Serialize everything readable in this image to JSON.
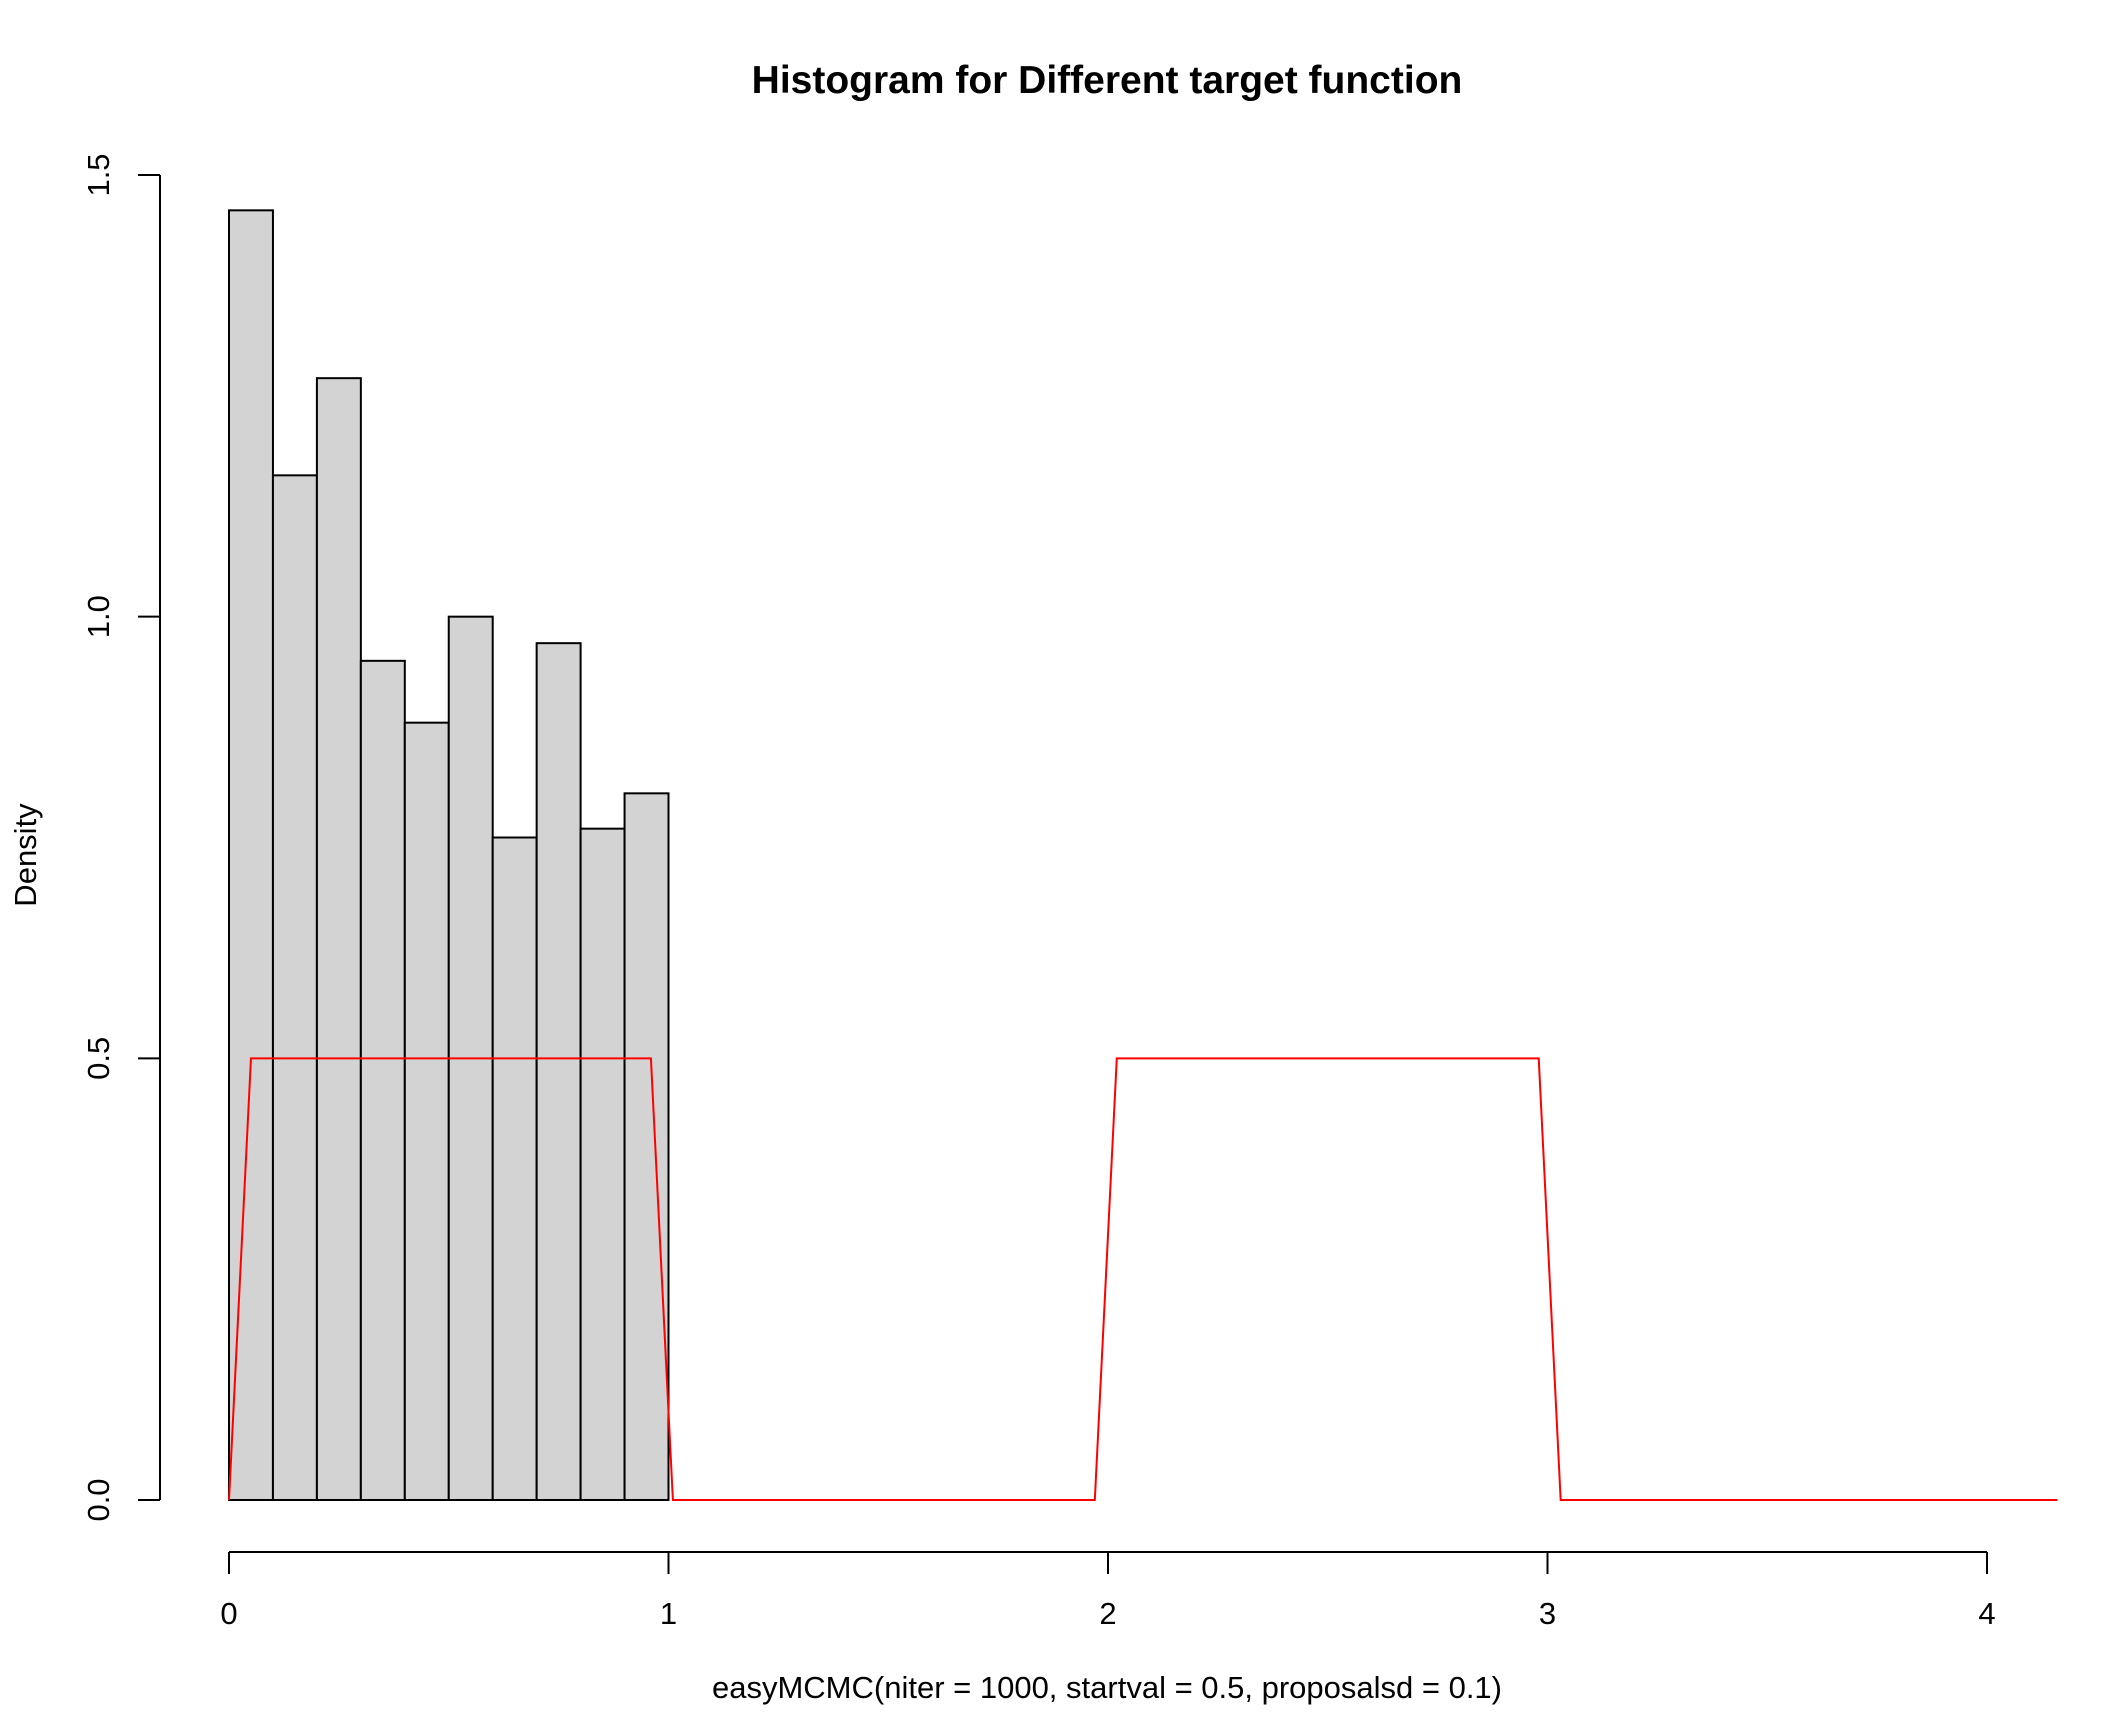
{
  "chart_data": {
    "type": "bar",
    "title": "Histogram for Different target function",
    "xlabel": "easyMCMC(niter = 1000, startval = 0.5, proposalsd = 0.1)",
    "ylabel": "Density",
    "xlim": [
      0,
      4
    ],
    "ylim": [
      0,
      1.5
    ],
    "x_ticks": [
      "0",
      "1",
      "2",
      "3",
      "4"
    ],
    "y_ticks": [
      "0.0",
      "0.5",
      "1.0",
      "1.5"
    ],
    "bin_width": 0.1,
    "bins": [
      {
        "start": 0.0,
        "end": 0.1,
        "density": 1.46
      },
      {
        "start": 0.1,
        "end": 0.2,
        "density": 1.16
      },
      {
        "start": 0.2,
        "end": 0.3,
        "density": 1.27
      },
      {
        "start": 0.3,
        "end": 0.4,
        "density": 0.95
      },
      {
        "start": 0.4,
        "end": 0.5,
        "density": 0.88
      },
      {
        "start": 0.5,
        "end": 0.6,
        "density": 1.0
      },
      {
        "start": 0.6,
        "end": 0.7,
        "density": 0.75
      },
      {
        "start": 0.7,
        "end": 0.8,
        "density": 0.97
      },
      {
        "start": 0.8,
        "end": 0.9,
        "density": 0.76
      },
      {
        "start": 0.9,
        "end": 1.0,
        "density": 0.8
      }
    ],
    "bar_fill": "#d3d3d3",
    "bar_stroke": "#000000",
    "target_line": {
      "color": "#ff0000",
      "points": [
        [
          0.0,
          0.0
        ],
        [
          0.05,
          0.5
        ],
        [
          0.96,
          0.5
        ],
        [
          1.01,
          0.0
        ],
        [
          1.97,
          0.0
        ],
        [
          2.02,
          0.5
        ],
        [
          2.98,
          0.5
        ],
        [
          3.03,
          0.0
        ],
        [
          4.16,
          0.0
        ]
      ]
    },
    "grid": false,
    "legend": "none"
  }
}
